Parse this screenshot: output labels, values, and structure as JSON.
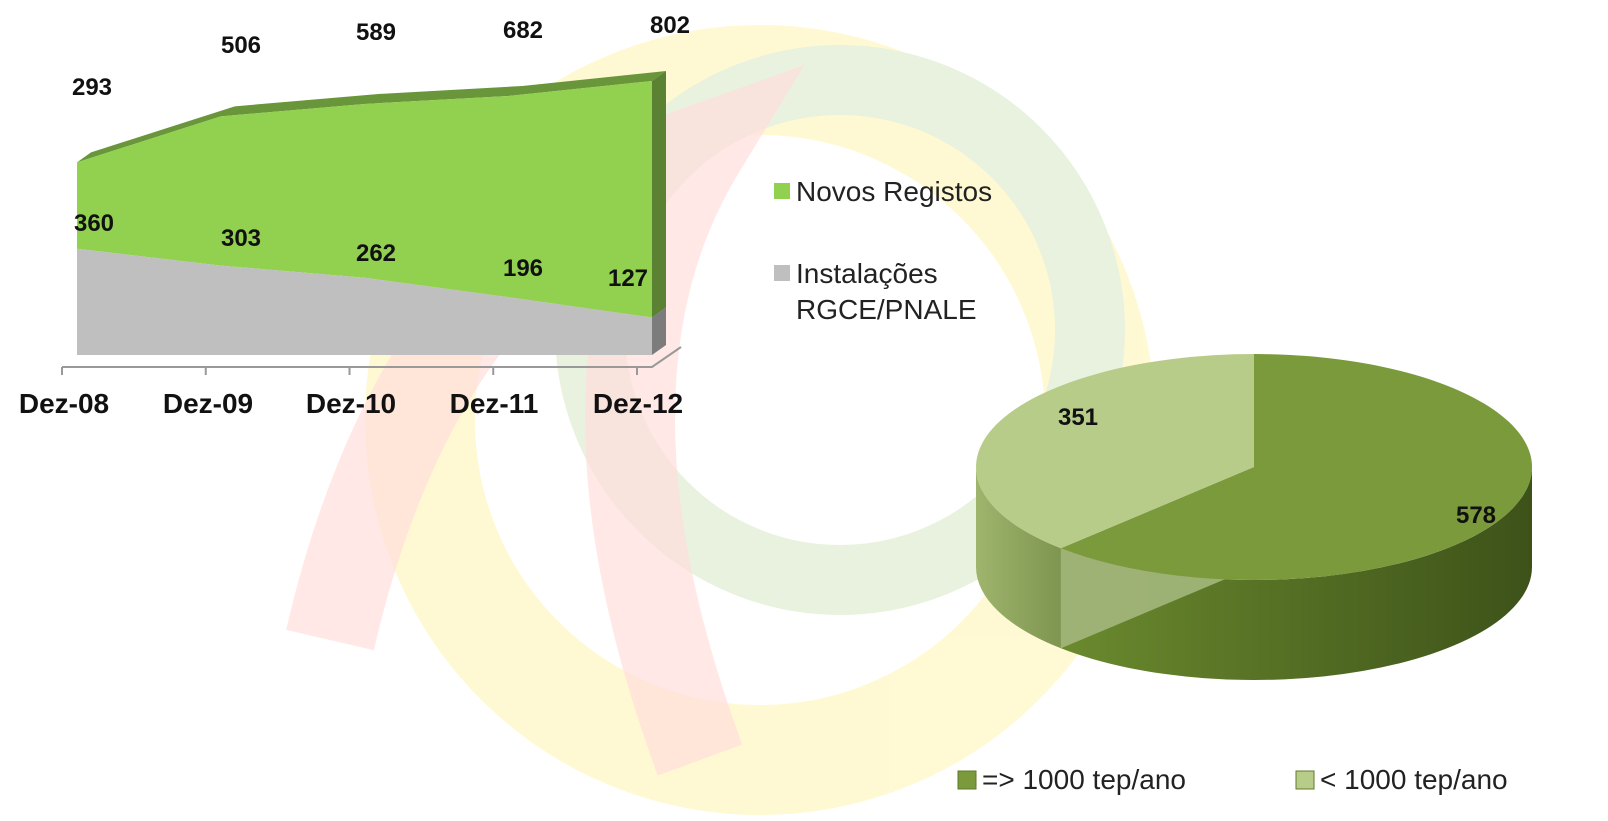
{
  "chart_data": [
    {
      "type": "area",
      "stacked": true,
      "categories": [
        "Dez-08",
        "Dez-09",
        "Dez-10",
        "Dez-11",
        "Dez-12"
      ],
      "series": [
        {
          "name": "Instalações RGCE/PNALE",
          "values": [
            360,
            303,
            262,
            196,
            127
          ],
          "color": "#bfbfbf"
        },
        {
          "name": "Novos Registos",
          "values": [
            293,
            506,
            589,
            682,
            802
          ],
          "color": "#92d050"
        }
      ],
      "title": "",
      "xlabel": "",
      "ylabel": "",
      "ylim": [
        0,
        1000
      ],
      "grid": false,
      "legend_position": "right"
    },
    {
      "type": "pie",
      "categories": [
        "=> 1000 tep/ano",
        "< 1000 tep/ano"
      ],
      "values": [
        578,
        351
      ],
      "colors": [
        "#7a9a3c",
        "#b8cc8a"
      ],
      "title": "",
      "legend_position": "bottom"
    }
  ]
}
